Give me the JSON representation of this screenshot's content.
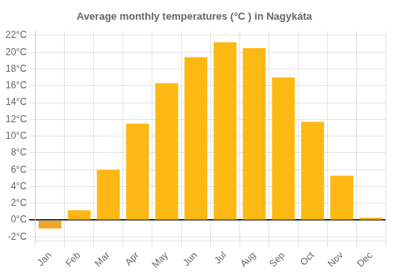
{
  "chart_data": {
    "type": "bar",
    "title": "Average monthly temperatures (°C ) in Nagykáta",
    "categories": [
      "Jan",
      "Feb",
      "Mar",
      "Apr",
      "May",
      "Jun",
      "Jul",
      "Aug",
      "Sep",
      "Oct",
      "Nov",
      "Dec"
    ],
    "values": [
      -1.0,
      1.2,
      6.0,
      11.5,
      16.3,
      19.4,
      21.2,
      20.5,
      17.0,
      11.7,
      5.3,
      0.3
    ],
    "colors": [
      "#F5A623",
      "#FDB813",
      "#FDB813",
      "#FDB813",
      "#FDB813",
      "#FDB813",
      "#FDB813",
      "#FDB813",
      "#FDB813",
      "#FDB813",
      "#FDB813",
      "#FDB813"
    ],
    "ylim": [
      -2.5,
      22.5
    ],
    "yticks": [
      {
        "value": -2,
        "label": "-2°C"
      },
      {
        "value": 0,
        "label": "0°C"
      },
      {
        "value": 2,
        "label": "2°C"
      },
      {
        "value": 4,
        "label": "4°C"
      },
      {
        "value": 6,
        "label": "6°C"
      },
      {
        "value": 8,
        "label": "8°C"
      },
      {
        "value": 10,
        "label": "10°C"
      },
      {
        "value": 12,
        "label": "12°C"
      },
      {
        "value": 14,
        "label": "14°C"
      },
      {
        "value": 16,
        "label": "16°C"
      },
      {
        "value": 18,
        "label": "18°C"
      },
      {
        "value": 20,
        "label": "20°C"
      },
      {
        "value": 22,
        "label": "22°C"
      }
    ],
    "grid": true
  }
}
